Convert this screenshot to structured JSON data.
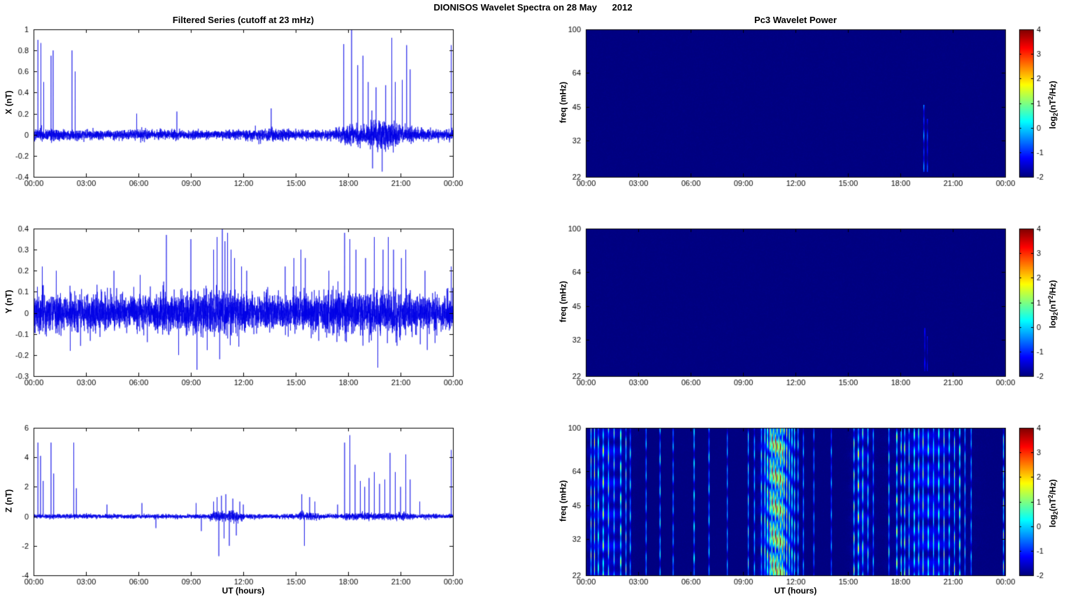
{
  "figure_title": "DIONISOS Wavelet Spectra on 28 May      2012",
  "titles": {
    "left_column": "Filtered Series (cutoff at 23 mHz)",
    "right_column": "Pc3 Wavelet Power"
  },
  "axes": {
    "xlabel": "UT (hours)",
    "x_tick_labels": [
      "00:00",
      "03:00",
      "06:00",
      "09:00",
      "12:00",
      "15:00",
      "18:00",
      "21:00",
      "00:00"
    ],
    "x_tick_hours": [
      0,
      3,
      6,
      9,
      12,
      15,
      18,
      21,
      24
    ],
    "freq_ylabel": "freq (mHz)",
    "freq_ticks": [
      22,
      32,
      45,
      64,
      100
    ],
    "freq_lim": [
      22,
      100
    ]
  },
  "colorbar": {
    "lim": [
      -2,
      4
    ],
    "ticks": [
      4,
      3,
      2,
      1,
      0,
      -1,
      -2
    ],
    "label_parts": {
      "p1": "log",
      "sub": "2",
      "p2": "(nT",
      "sup": "2",
      "p3": "/Hz)"
    }
  },
  "style": {
    "line_color": "#0000E6",
    "frame_color": "#000000",
    "background": "#FFFFFF",
    "colormap": "jet",
    "spectrogram_background_value": -2
  },
  "chart_data": [
    {
      "type": "line",
      "name": "X filtered series",
      "ylabel": "X (nT)",
      "ylim": [
        -0.4,
        1
      ],
      "yticks": [
        -0.4,
        -0.2,
        0,
        0.2,
        0.4,
        0.6,
        0.8,
        1
      ],
      "x_range_hours": [
        0,
        24
      ],
      "noise_std_nT": 0.022,
      "noise_envelope": [
        [
          0,
          1.3
        ],
        [
          1,
          1.2
        ],
        [
          3,
          1
        ],
        [
          6,
          1
        ],
        [
          9,
          0.9
        ],
        [
          12,
          1
        ],
        [
          13.5,
          1.4
        ],
        [
          14.5,
          1
        ],
        [
          17,
          1
        ],
        [
          17.8,
          1.8
        ],
        [
          19,
          2.2
        ],
        [
          19.8,
          3.2
        ],
        [
          20.8,
          2.2
        ],
        [
          21.8,
          1.4
        ],
        [
          23,
          1
        ],
        [
          24,
          1.1
        ]
      ],
      "spikes": [
        [
          0.25,
          0.9
        ],
        [
          0.42,
          0.87
        ],
        [
          0.58,
          0.5
        ],
        [
          1.0,
          0.75
        ],
        [
          1.12,
          0.8
        ],
        [
          2.2,
          0.8
        ],
        [
          2.38,
          0.6
        ],
        [
          5.9,
          0.2
        ],
        [
          8.2,
          0.22
        ],
        [
          13.6,
          0.25
        ],
        [
          17.75,
          0.86
        ],
        [
          18.2,
          1.0
        ],
        [
          18.55,
          0.66
        ],
        [
          18.85,
          0.75
        ],
        [
          19.15,
          0.5
        ],
        [
          19.4,
          -0.32
        ],
        [
          19.6,
          0.45
        ],
        [
          19.95,
          -0.35
        ],
        [
          20.15,
          0.47
        ],
        [
          20.5,
          0.92
        ],
        [
          20.7,
          0.5
        ],
        [
          21.1,
          0.52
        ],
        [
          21.35,
          0.85
        ],
        [
          21.55,
          0.62
        ],
        [
          23.9,
          0.85
        ]
      ]
    },
    {
      "type": "line",
      "name": "Y filtered series",
      "ylabel": "Y (nT)",
      "ylim": [
        -0.3,
        0.4
      ],
      "yticks": [
        -0.3,
        -0.2,
        -0.1,
        0,
        0.1,
        0.2,
        0.3,
        0.4
      ],
      "x_range_hours": [
        0,
        24
      ],
      "noise_std_nT": 0.042,
      "noise_envelope": [
        [
          0,
          1.1
        ],
        [
          3,
          1
        ],
        [
          6,
          1
        ],
        [
          9,
          1.05
        ],
        [
          10.3,
          1.3
        ],
        [
          11.5,
          1.3
        ],
        [
          12.5,
          1
        ],
        [
          15,
          1
        ],
        [
          17.5,
          1.15
        ],
        [
          20,
          1.2
        ],
        [
          22,
          1
        ],
        [
          24,
          1.05
        ]
      ],
      "spikes": [
        [
          0.5,
          0.22
        ],
        [
          1.3,
          0.2
        ],
        [
          2.1,
          -0.18
        ],
        [
          4.6,
          0.2
        ],
        [
          6.1,
          0.18
        ],
        [
          7.6,
          0.37
        ],
        [
          8.3,
          -0.2
        ],
        [
          9.0,
          0.35
        ],
        [
          9.35,
          -0.27
        ],
        [
          10.3,
          0.3
        ],
        [
          10.5,
          0.36
        ],
        [
          10.65,
          -0.22
        ],
        [
          10.8,
          0.4
        ],
        [
          10.95,
          0.34
        ],
        [
          11.1,
          0.38
        ],
        [
          11.3,
          0.3
        ],
        [
          11.5,
          0.26
        ],
        [
          11.9,
          0.22
        ],
        [
          12.2,
          0.2
        ],
        [
          14.4,
          0.22
        ],
        [
          14.9,
          0.26
        ],
        [
          15.3,
          0.3
        ],
        [
          15.55,
          0.26
        ],
        [
          16.9,
          0.2
        ],
        [
          17.8,
          0.38
        ],
        [
          18.1,
          0.35
        ],
        [
          18.45,
          0.3
        ],
        [
          19.0,
          0.26
        ],
        [
          19.5,
          0.36
        ],
        [
          19.7,
          -0.26
        ],
        [
          20.0,
          0.3
        ],
        [
          20.3,
          0.36
        ],
        [
          20.6,
          0.3
        ],
        [
          21.05,
          0.26
        ],
        [
          21.3,
          0.3
        ],
        [
          22.4,
          0.2
        ],
        [
          23.9,
          0.22
        ]
      ]
    },
    {
      "type": "line",
      "name": "Z filtered series",
      "ylabel": "Z (nT)",
      "ylim": [
        -4,
        6
      ],
      "yticks": [
        -4,
        -2,
        0,
        2,
        4,
        6
      ],
      "x_range_hours": [
        0,
        24
      ],
      "noise_std_nT": 0.07,
      "noise_envelope": [
        [
          0,
          1
        ],
        [
          10,
          1
        ],
        [
          10.3,
          2.5
        ],
        [
          11.8,
          2.5
        ],
        [
          12.1,
          1
        ],
        [
          15.2,
          1
        ],
        [
          15.3,
          2
        ],
        [
          16.2,
          2
        ],
        [
          16.4,
          1
        ],
        [
          17.6,
          1
        ],
        [
          18,
          1.6
        ],
        [
          21.5,
          1.6
        ],
        [
          22,
          1
        ],
        [
          24,
          1
        ]
      ],
      "spikes": [
        [
          0.25,
          5.0
        ],
        [
          0.4,
          4.1
        ],
        [
          0.55,
          2.4
        ],
        [
          1.0,
          5.0
        ],
        [
          1.15,
          2.9
        ],
        [
          2.3,
          5.0
        ],
        [
          2.45,
          1.9
        ],
        [
          4.2,
          0.8
        ],
        [
          6.2,
          0.9
        ],
        [
          7.0,
          -0.8
        ],
        [
          9.3,
          0.9
        ],
        [
          9.6,
          -1.0
        ],
        [
          10.3,
          1.0
        ],
        [
          10.5,
          1.3
        ],
        [
          10.6,
          -2.7
        ],
        [
          10.75,
          1.4
        ],
        [
          10.9,
          -1.5
        ],
        [
          11.0,
          1.5
        ],
        [
          11.2,
          -2.0
        ],
        [
          11.4,
          1.2
        ],
        [
          11.6,
          -1.3
        ],
        [
          11.8,
          1.0
        ],
        [
          12.0,
          0.8
        ],
        [
          15.35,
          1.5
        ],
        [
          15.5,
          -2.0
        ],
        [
          15.8,
          1.3
        ],
        [
          16.1,
          1.0
        ],
        [
          17.4,
          0.8
        ],
        [
          17.8,
          5.0
        ],
        [
          18.1,
          5.5
        ],
        [
          18.4,
          3.5
        ],
        [
          18.7,
          2.4
        ],
        [
          18.95,
          2.0
        ],
        [
          19.2,
          2.6
        ],
        [
          19.5,
          3.0
        ],
        [
          19.8,
          2.2
        ],
        [
          20.1,
          2.5
        ],
        [
          20.4,
          4.3
        ],
        [
          20.7,
          3.0
        ],
        [
          21.0,
          2.0
        ],
        [
          21.3,
          4.2
        ],
        [
          21.55,
          2.5
        ],
        [
          22.1,
          1.0
        ],
        [
          23.9,
          4.5
        ]
      ]
    },
    {
      "type": "heatmap",
      "name": "X wavelet power",
      "ylabel": "freq (mHz)",
      "ylim": [
        22,
        100
      ],
      "yscale": "log",
      "clim": [
        -2,
        4
      ],
      "background_value": -2,
      "default_width": 0.03,
      "event_format": [
        "t_hours",
        "peak_log2_power",
        "width_hours_optional",
        "f_min_mHz_optional",
        "f_max_mHz_optional"
      ],
      "events": [
        [
          19.35,
          0.2,
          0.03,
          23,
          46
        ],
        [
          19.55,
          -0.4,
          0.03,
          23,
          40
        ]
      ]
    },
    {
      "type": "heatmap",
      "name": "Y wavelet power",
      "ylabel": "freq (mHz)",
      "ylim": [
        22,
        100
      ],
      "yscale": "log",
      "clim": [
        -2,
        4
      ],
      "background_value": -2,
      "default_width": 0.025,
      "event_format": [
        "t_hours",
        "peak_log2_power",
        "width_hours_optional",
        "f_min_mHz_optional",
        "f_max_mHz_optional"
      ],
      "events": [
        [
          19.4,
          -0.5,
          0.025,
          23,
          36
        ],
        [
          19.55,
          -0.9,
          0.02,
          23,
          33
        ]
      ]
    },
    {
      "type": "heatmap",
      "name": "Z wavelet power",
      "ylabel": "freq (mHz)",
      "ylim": [
        22,
        100
      ],
      "yscale": "log",
      "clim": [
        -2,
        4
      ],
      "background_value": -2,
      "default_width": 0.032,
      "event_format": [
        "t_hours",
        "peak_log2_power",
        "width_hours_optional",
        "f_min_mHz_optional",
        "f_max_mHz_optional"
      ],
      "events": [
        [
          1.2,
          -1.2,
          1.0
        ],
        [
          10.95,
          -0.5,
          0.8
        ],
        [
          15.8,
          -1.3,
          0.5
        ],
        [
          19.6,
          -1.1,
          1.6
        ],
        [
          0.3,
          1.6
        ],
        [
          0.5,
          2.1
        ],
        [
          0.72,
          1.2
        ],
        [
          1.0,
          2.0
        ],
        [
          1.3,
          1.3
        ],
        [
          1.62,
          0.8
        ],
        [
          2.0,
          2.2
        ],
        [
          2.3,
          1.4
        ],
        [
          2.55,
          0.9
        ],
        [
          3.45,
          0.6
        ],
        [
          4.25,
          1.1
        ],
        [
          5.0,
          0.6
        ],
        [
          6.2,
          1.3
        ],
        [
          7.05,
          0.9
        ],
        [
          8.1,
          0.4
        ],
        [
          9.3,
          1.1
        ],
        [
          9.65,
          0.9
        ],
        [
          10.05,
          1.3
        ],
        [
          10.25,
          1.7
        ],
        [
          10.4,
          2.1
        ],
        [
          10.55,
          2.6
        ],
        [
          10.65,
          3.1
        ],
        [
          10.75,
          2.3
        ],
        [
          10.85,
          3.9
        ],
        [
          10.95,
          3.1
        ],
        [
          11.05,
          2.6
        ],
        [
          11.15,
          3.6
        ],
        [
          11.25,
          2.9
        ],
        [
          11.35,
          2.1
        ],
        [
          11.5,
          2.4
        ],
        [
          11.65,
          1.9
        ],
        [
          11.8,
          1.6
        ],
        [
          11.95,
          1.3
        ],
        [
          12.15,
          0.9
        ],
        [
          12.45,
          0.6
        ],
        [
          13.05,
          0.4
        ],
        [
          14.05,
          0.3
        ],
        [
          15.35,
          1.9
        ],
        [
          15.6,
          2.3
        ],
        [
          15.85,
          1.6
        ],
        [
          16.15,
          1.1
        ],
        [
          16.45,
          0.6
        ],
        [
          17.35,
          1.1
        ],
        [
          17.8,
          2.4
        ],
        [
          18.05,
          1.6
        ],
        [
          18.25,
          1.9
        ],
        [
          18.5,
          1.3
        ],
        [
          18.8,
          1.6
        ],
        [
          19.05,
          1.1
        ],
        [
          19.3,
          1.4
        ],
        [
          19.6,
          1.1
        ],
        [
          19.9,
          0.9
        ],
        [
          20.2,
          1.3
        ],
        [
          20.5,
          1.9
        ],
        [
          20.8,
          1.1
        ],
        [
          21.1,
          1.6
        ],
        [
          21.4,
          2.1
        ],
        [
          21.7,
          0.9
        ],
        [
          22.05,
          0.6
        ],
        [
          23.9,
          1.6
        ]
      ]
    }
  ]
}
